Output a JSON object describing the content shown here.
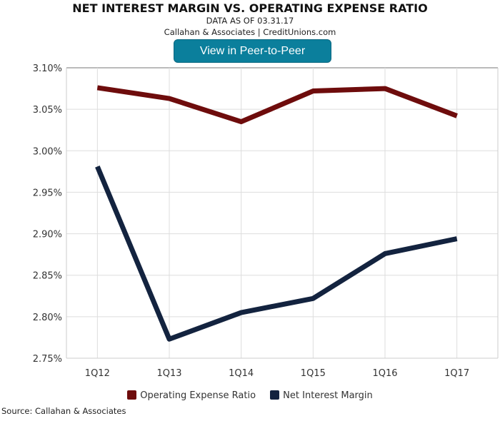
{
  "chart_data": {
    "type": "line",
    "title": "NET INTEREST MARGIN VS. OPERATING EXPENSE RATIO",
    "subtitle": "DATA AS OF 03.31.17",
    "subtitle2": "Callahan & Associates | CreditUnions.com",
    "categories": [
      "1Q12",
      "1Q13",
      "1Q14",
      "1Q15",
      "1Q16",
      "1Q17"
    ],
    "y_ticks": [
      "3.10%",
      "3.05%",
      "3.00%",
      "2.95%",
      "2.90%",
      "2.85%",
      "2.80%",
      "2.75%"
    ],
    "ylim": [
      2.75,
      3.1
    ],
    "ylabel": "",
    "xlabel": "",
    "grid": true,
    "legend_placement": "bottom",
    "series": [
      {
        "name": "Operating Expense Ratio",
        "color": "#6e0c0c",
        "values": [
          3.076,
          3.063,
          3.035,
          3.072,
          3.075,
          3.042
        ]
      },
      {
        "name": "Net Interest Margin",
        "color": "#13233f",
        "values": [
          2.981,
          2.773,
          2.805,
          2.822,
          2.876,
          2.894
        ]
      }
    ]
  },
  "button_label": "View in Peer-to-Peer",
  "source": "Source: Callahan & Associates"
}
